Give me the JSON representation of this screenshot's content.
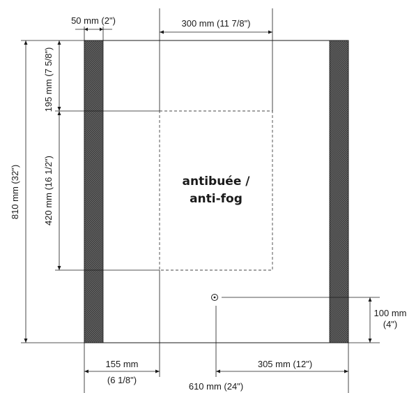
{
  "zone_label": {
    "line1": "antibuée /",
    "line2": "anti-fog"
  },
  "dimensions": {
    "strip_width": "50 mm (2\")",
    "zone_width": "300 mm (11 7/8\")",
    "total_height": "810 mm (32\")",
    "top_offset": "195 mm (7 5/8\")",
    "zone_height": "420 mm (16 1/2\")",
    "left_offset_mm": "155 mm",
    "left_offset_in": "(6 1/8\")",
    "right_offset": "305 mm (12\")",
    "total_width": "610 mm (24\")",
    "switch_height_mm": "100 mm",
    "switch_height_in": "(4\")"
  },
  "colors": {
    "line": "#1a1a1a",
    "led_strip": "#555555"
  }
}
